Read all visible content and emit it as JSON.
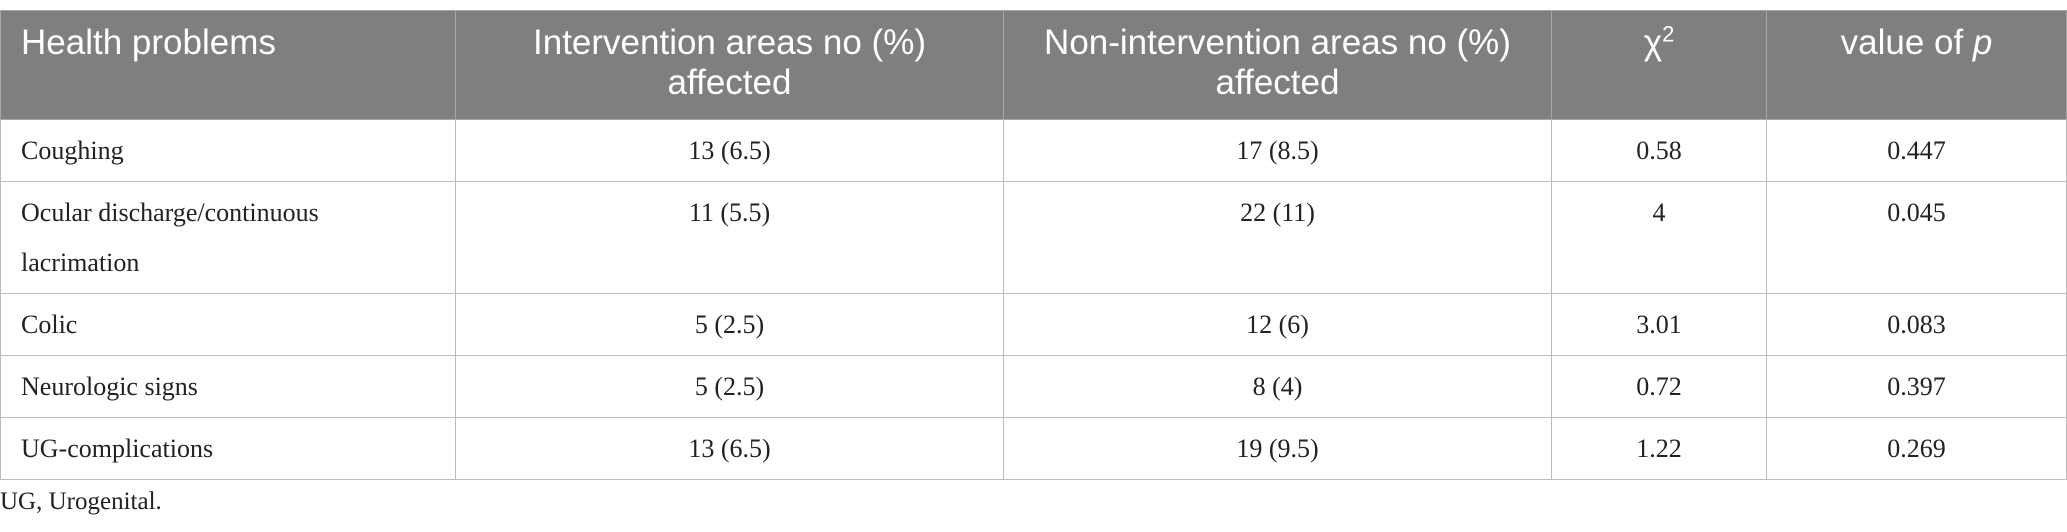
{
  "table": {
    "header": [
      {
        "text": "Health problems"
      },
      {
        "text": "Intervention areas no (%) affected"
      },
      {
        "text": "Non-intervention areas no (%) affected"
      },
      {
        "text": "χ",
        "sup": "2"
      },
      {
        "text": "value of ",
        "italic": "p"
      }
    ],
    "rows": [
      [
        "Coughing",
        "13 (6.5)",
        "17 (8.5)",
        "0.58",
        "0.447"
      ],
      [
        "Ocular discharge/continuous lacrimation",
        "11 (5.5)",
        "22 (11)",
        "4",
        "0.045"
      ],
      [
        "Colic",
        "5 (2.5)",
        "12 (6)",
        "3.01",
        "0.083"
      ],
      [
        "Neurologic signs",
        "5 (2.5)",
        "8 (4)",
        "0.72",
        "0.397"
      ],
      [
        "UG-complications",
        "13 (6.5)",
        "19 (9.5)",
        "1.22",
        "0.269"
      ]
    ],
    "footnote": "UG, Urogenital."
  }
}
